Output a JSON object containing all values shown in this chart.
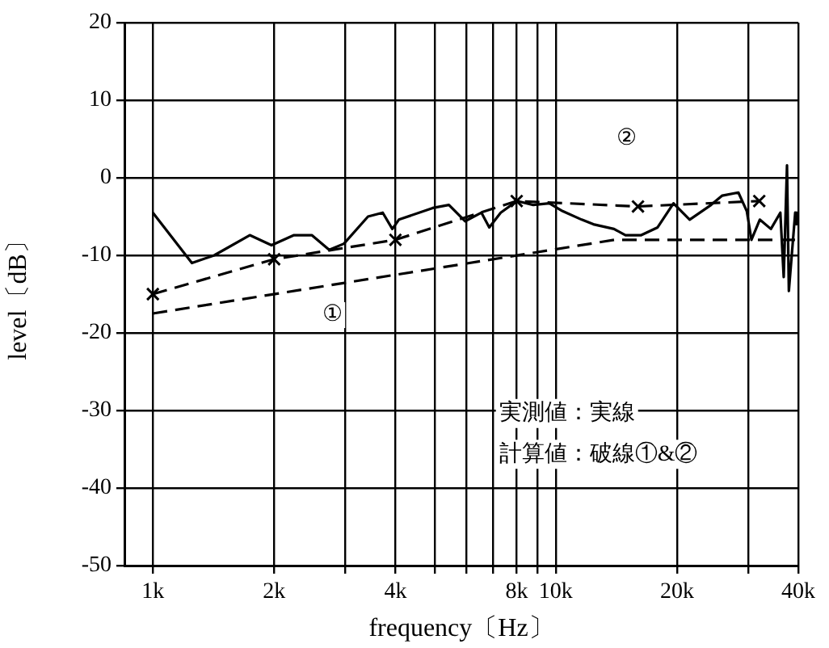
{
  "chart_data": {
    "type": "line",
    "xlabel": "frequency〔Hz〕",
    "ylabel": "level〔dB〕",
    "log": "x",
    "xlim": [
      850,
      40000
    ],
    "xticks": [
      {
        "value": 1000,
        "label": "1k"
      },
      {
        "value": 2000,
        "label": "2k"
      },
      {
        "value": 3000,
        "label": null
      },
      {
        "value": 4000,
        "label": "4k"
      },
      {
        "value": 5000,
        "label": null
      },
      {
        "value": 6000,
        "label": null
      },
      {
        "value": 7000,
        "label": null
      },
      {
        "value": 8000,
        "label": "8k"
      },
      {
        "value": 9000,
        "label": null
      },
      {
        "value": 10000,
        "label": "10k"
      },
      {
        "value": 20000,
        "label": "20k"
      },
      {
        "value": 30000,
        "label": null
      },
      {
        "value": 40000,
        "label": "40k"
      }
    ],
    "ylim": [
      -50,
      20
    ],
    "yticks": [
      -50,
      -40,
      -30,
      -20,
      -10,
      0,
      10,
      20
    ],
    "grid": true,
    "legend": false,
    "series": [
      {
        "color": "#000000",
        "marker": "none",
        "line_style": "solid",
        "x": [
          1000,
          1250,
          1420,
          1740,
          1970,
          2240,
          2480,
          2740,
          2980,
          3420,
          3720,
          3930,
          4080,
          4950,
          5430,
          5960,
          6540,
          6840,
          7300,
          8010,
          8790,
          9640,
          10400,
          11600,
          12400,
          13950,
          14900,
          16300,
          17900,
          19600,
          21500,
          24300,
          25900,
          28400,
          29800,
          30600,
          32100,
          34200,
          36100,
          36800,
          37500,
          37900,
          39300,
          39600
        ],
        "values": [
          -4.5,
          -11,
          -10,
          -7.4,
          -8.7,
          -7.4,
          -7.4,
          -9.3,
          -8.5,
          -5,
          -4.5,
          -6.6,
          -5.4,
          -3.9,
          -3.5,
          -5.6,
          -4.5,
          -6.4,
          -4.5,
          -3,
          -3.5,
          -3.3,
          -4.3,
          -5.4,
          -6,
          -6.6,
          -7.4,
          -7.4,
          -6.4,
          -3.3,
          -5.4,
          -3.5,
          -2.3,
          -1.9,
          -4.3,
          -8,
          -5.4,
          -6.6,
          -4.5,
          -12.8,
          1.6,
          -14.6,
          -4.5,
          -6
        ]
      },
      {
        "color": "#000000",
        "marker": "none",
        "line_style": "dashed",
        "x": [
          1000,
          14000,
          40000
        ],
        "values": [
          -17.5,
          -8,
          -8
        ]
      },
      {
        "color": "#000000",
        "marker": "cross",
        "line_style": "dashed",
        "x": [
          1000,
          2000,
          4000,
          8000,
          16000,
          32000
        ],
        "values": [
          -15,
          -10.5,
          -8,
          -3,
          -3.7,
          -3
        ]
      }
    ],
    "annotations": [
      {
        "text": "①",
        "x": 2800,
        "y": -17.7
      },
      {
        "text": "②",
        "x": 15000,
        "y": 5
      },
      "実測値：実線",
      "計算値：破線①&②"
    ]
  }
}
